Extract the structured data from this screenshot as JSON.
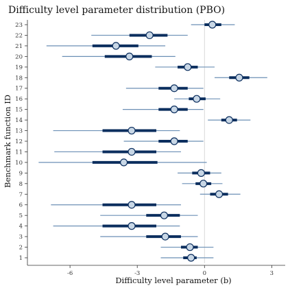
{
  "chart_data": {
    "type": "forest",
    "title": "Difficulty level parameter distribution (PBO)",
    "xlabel": "Difficulty level parameter (b)",
    "ylabel": "Benchmark function ID",
    "xlim": [
      -7.9,
      3.6
    ],
    "xticks": [
      -6,
      -3,
      0,
      3
    ],
    "reference_line": 0,
    "categories": [
      "1",
      "2",
      "3",
      "4",
      "5",
      "6",
      "7",
      "8",
      "9",
      "10",
      "11",
      "12",
      "13",
      "14",
      "15",
      "16",
      "17",
      "18",
      "19",
      "20",
      "21",
      "22",
      "23"
    ],
    "median": [
      -0.6,
      -0.65,
      -1.75,
      -3.25,
      -1.8,
      -3.25,
      0.65,
      -0.05,
      -0.15,
      -3.6,
      -3.25,
      -1.35,
      -3.25,
      1.1,
      -1.35,
      -0.35,
      -1.35,
      1.55,
      -0.75,
      -3.35,
      -3.95,
      -2.45,
      0.35
    ],
    "inner_low": [
      -0.95,
      -1.05,
      -2.6,
      -4.55,
      -2.6,
      -4.55,
      0.25,
      -0.4,
      -0.55,
      -5.0,
      -4.55,
      -2.05,
      -4.55,
      0.75,
      -2.05,
      -0.7,
      -2.05,
      1.1,
      -1.2,
      -4.45,
      -5.0,
      -3.35,
      0.0
    ],
    "inner_high": [
      -0.35,
      -0.3,
      -1.05,
      -2.15,
      -1.1,
      -2.15,
      1.05,
      0.3,
      0.25,
      -2.1,
      -2.15,
      -0.75,
      -2.15,
      1.45,
      -0.75,
      0.05,
      -0.75,
      2.0,
      -0.3,
      -2.35,
      -2.95,
      -1.65,
      0.75
    ],
    "outer_low": [
      -1.95,
      -1.95,
      -4.65,
      -6.75,
      -4.65,
      -6.85,
      -0.2,
      -1.0,
      -1.2,
      -7.4,
      -6.7,
      -3.6,
      -6.75,
      0.15,
      -3.65,
      -1.35,
      -3.5,
      0.45,
      -2.2,
      -6.35,
      -7.05,
      -5.05,
      -0.6
    ],
    "outer_high": [
      0.4,
      0.4,
      -0.3,
      -1.1,
      -0.3,
      -1.05,
      1.6,
      0.8,
      0.75,
      0.1,
      -1.05,
      -0.05,
      -1.1,
      2.05,
      -0.05,
      0.7,
      -0.05,
      2.8,
      0.45,
      -1.3,
      -1.75,
      -0.75,
      1.35
    ],
    "colors": {
      "outer_line": "#6b8fb5",
      "inner_line": "#0b2e5e",
      "point_fill": "#c8d7e6",
      "point_stroke": "#0b2e5e",
      "reference": "#d9d9d9"
    }
  }
}
